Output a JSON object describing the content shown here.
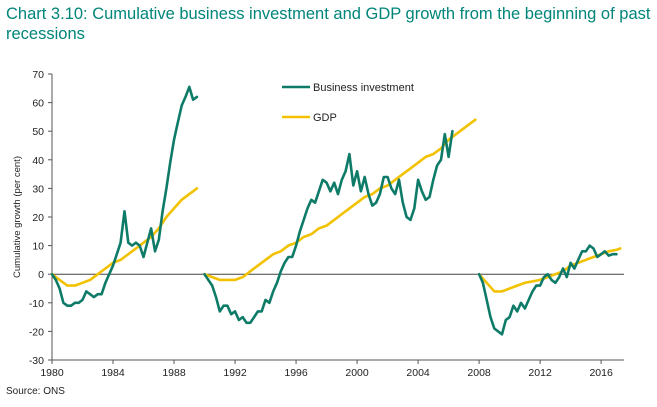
{
  "title": "Chart 3.10: Cumulative business investment and GDP growth from the beginning of past recessions",
  "source": "Source: ONS",
  "chart_data": {
    "type": "line",
    "ylabel": "Cumulative growth (per cent)",
    "xlim": [
      1980,
      2017.5
    ],
    "ylim": [
      -30,
      70
    ],
    "x_ticks": [
      "1980",
      "1984",
      "1988",
      "1992",
      "1996",
      "2000",
      "2004",
      "2008",
      "2012",
      "2016"
    ],
    "y_ticks": [
      "70",
      "60",
      "50",
      "40",
      "30",
      "20",
      "10",
      "0",
      "-10",
      "-20",
      "-30"
    ],
    "legend_position": "upper-center",
    "series": [
      {
        "name": "Business investment",
        "color": "#0e7b68",
        "segments": [
          [
            [
              1980.0,
              0
            ],
            [
              1980.25,
              -2
            ],
            [
              1980.5,
              -5
            ],
            [
              1980.75,
              -10
            ],
            [
              1981.0,
              -11
            ],
            [
              1981.25,
              -11
            ],
            [
              1981.5,
              -10
            ],
            [
              1981.75,
              -10
            ],
            [
              1982.0,
              -9
            ],
            [
              1982.25,
              -6
            ],
            [
              1982.5,
              -7
            ],
            [
              1982.75,
              -8
            ],
            [
              1983.0,
              -7
            ],
            [
              1983.25,
              -7
            ],
            [
              1983.5,
              -3
            ],
            [
              1983.75,
              0
            ],
            [
              1984.0,
              3
            ],
            [
              1984.25,
              7
            ],
            [
              1984.5,
              11
            ],
            [
              1984.75,
              22
            ],
            [
              1985.0,
              11
            ],
            [
              1985.25,
              10
            ],
            [
              1985.5,
              11
            ],
            [
              1985.75,
              10
            ],
            [
              1986.0,
              6
            ],
            [
              1986.25,
              11
            ],
            [
              1986.5,
              16
            ],
            [
              1986.75,
              8
            ],
            [
              1987.0,
              12
            ],
            [
              1987.25,
              22
            ],
            [
              1987.5,
              30
            ],
            [
              1987.75,
              39
            ],
            [
              1988.0,
              47
            ],
            [
              1988.25,
              53
            ],
            [
              1988.5,
              59
            ],
            [
              1988.75,
              62
            ],
            [
              1989.0,
              65.5
            ],
            [
              1989.25,
              61
            ],
            [
              1989.5,
              62
            ]
          ],
          [
            [
              1990.0,
              0
            ],
            [
              1990.25,
              -2
            ],
            [
              1990.5,
              -4
            ],
            [
              1990.75,
              -8
            ],
            [
              1991.0,
              -13
            ],
            [
              1991.25,
              -11
            ],
            [
              1991.5,
              -11
            ],
            [
              1991.75,
              -14
            ],
            [
              1992.0,
              -13
            ],
            [
              1992.25,
              -16
            ],
            [
              1992.5,
              -15
            ],
            [
              1992.75,
              -17
            ],
            [
              1993.0,
              -17
            ],
            [
              1993.25,
              -15
            ],
            [
              1993.5,
              -13
            ],
            [
              1993.75,
              -13
            ],
            [
              1994.0,
              -9
            ],
            [
              1994.25,
              -10
            ],
            [
              1994.5,
              -6
            ],
            [
              1994.75,
              -3
            ],
            [
              1995.0,
              1
            ],
            [
              1995.25,
              4
            ],
            [
              1995.5,
              6
            ],
            [
              1995.75,
              6
            ],
            [
              1996.0,
              10
            ],
            [
              1996.25,
              15
            ],
            [
              1996.5,
              19
            ],
            [
              1996.75,
              23
            ],
            [
              1997.0,
              26
            ],
            [
              1997.25,
              25
            ],
            [
              1997.5,
              29
            ],
            [
              1997.75,
              33
            ],
            [
              1998.0,
              32
            ],
            [
              1998.25,
              29
            ],
            [
              1998.5,
              32
            ],
            [
              1998.75,
              28
            ],
            [
              1999.0,
              33
            ],
            [
              1999.25,
              36
            ],
            [
              1999.5,
              42
            ],
            [
              1999.75,
              31
            ],
            [
              2000.0,
              36
            ],
            [
              2000.25,
              29
            ],
            [
              2000.5,
              34
            ],
            [
              2000.75,
              28
            ],
            [
              2001.0,
              24
            ],
            [
              2001.25,
              25
            ],
            [
              2001.5,
              28
            ],
            [
              2001.75,
              34
            ],
            [
              2002.0,
              34
            ],
            [
              2002.25,
              30
            ],
            [
              2002.5,
              28
            ],
            [
              2002.75,
              33
            ],
            [
              2003.0,
              25
            ],
            [
              2003.25,
              20
            ],
            [
              2003.5,
              19
            ],
            [
              2003.75,
              23
            ],
            [
              2004.0,
              33
            ],
            [
              2004.25,
              29
            ],
            [
              2004.5,
              26
            ],
            [
              2004.75,
              27
            ],
            [
              2005.0,
              33
            ],
            [
              2005.25,
              38
            ],
            [
              2005.5,
              40
            ],
            [
              2005.75,
              49
            ],
            [
              2006.0,
              41
            ],
            [
              2006.25,
              50
            ]
          ],
          [
            [
              2008.0,
              0
            ],
            [
              2008.25,
              -3
            ],
            [
              2008.5,
              -9
            ],
            [
              2008.75,
              -15
            ],
            [
              2009.0,
              -19
            ],
            [
              2009.25,
              -20
            ],
            [
              2009.5,
              -21
            ],
            [
              2009.75,
              -16
            ],
            [
              2010.0,
              -15
            ],
            [
              2010.25,
              -11
            ],
            [
              2010.5,
              -13
            ],
            [
              2010.75,
              -10
            ],
            [
              2011.0,
              -12
            ],
            [
              2011.25,
              -9
            ],
            [
              2011.5,
              -6
            ],
            [
              2011.75,
              -4
            ],
            [
              2012.0,
              -4
            ],
            [
              2012.25,
              -1
            ],
            [
              2012.5,
              0
            ],
            [
              2012.75,
              -2
            ],
            [
              2013.0,
              -3
            ],
            [
              2013.25,
              -1
            ],
            [
              2013.5,
              2
            ],
            [
              2013.75,
              -1
            ],
            [
              2014.0,
              4
            ],
            [
              2014.25,
              2
            ],
            [
              2014.5,
              5
            ],
            [
              2014.75,
              8
            ],
            [
              2015.0,
              8
            ],
            [
              2015.25,
              10
            ],
            [
              2015.5,
              9
            ],
            [
              2015.75,
              6
            ],
            [
              2016.0,
              7
            ],
            [
              2016.25,
              8
            ],
            [
              2016.5,
              6.5
            ],
            [
              2016.75,
              7
            ],
            [
              2017.0,
              7
            ]
          ]
        ]
      },
      {
        "name": "GDP",
        "color": "#f2c200",
        "segments": [
          [
            [
              1980.0,
              0
            ],
            [
              1980.5,
              -2
            ],
            [
              1981.0,
              -4
            ],
            [
              1981.5,
              -4
            ],
            [
              1982.0,
              -3
            ],
            [
              1982.5,
              -2
            ],
            [
              1983.0,
              0
            ],
            [
              1983.5,
              2
            ],
            [
              1984.0,
              4
            ],
            [
              1984.5,
              5
            ],
            [
              1985.0,
              7
            ],
            [
              1985.5,
              9
            ],
            [
              1986.0,
              11
            ],
            [
              1986.5,
              13
            ],
            [
              1987.0,
              16
            ],
            [
              1987.5,
              20
            ],
            [
              1988.0,
              23
            ],
            [
              1988.5,
              26
            ],
            [
              1989.0,
              28
            ],
            [
              1989.25,
              29
            ],
            [
              1989.5,
              30
            ]
          ],
          [
            [
              1990.0,
              0
            ],
            [
              1990.5,
              -1
            ],
            [
              1991.0,
              -2
            ],
            [
              1991.5,
              -2
            ],
            [
              1992.0,
              -2
            ],
            [
              1992.5,
              -1
            ],
            [
              1993.0,
              1
            ],
            [
              1993.5,
              3
            ],
            [
              1994.0,
              5
            ],
            [
              1994.5,
              7
            ],
            [
              1995.0,
              8
            ],
            [
              1995.5,
              10
            ],
            [
              1996.0,
              11
            ],
            [
              1996.5,
              13
            ],
            [
              1997.0,
              14
            ],
            [
              1997.5,
              16
            ],
            [
              1998.0,
              17
            ],
            [
              1998.5,
              19
            ],
            [
              1999.0,
              21
            ],
            [
              1999.5,
              23
            ],
            [
              2000.0,
              25
            ],
            [
              2000.5,
              27
            ],
            [
              2001.0,
              28
            ],
            [
              2001.5,
              30
            ],
            [
              2002.0,
              31
            ],
            [
              2002.5,
              33
            ],
            [
              2003.0,
              35
            ],
            [
              2003.5,
              37
            ],
            [
              2004.0,
              39
            ],
            [
              2004.5,
              41
            ],
            [
              2005.0,
              42
            ],
            [
              2005.5,
              44
            ],
            [
              2006.0,
              47
            ],
            [
              2006.5,
              49
            ],
            [
              2007.0,
              51
            ],
            [
              2007.5,
              53
            ],
            [
              2007.75,
              54
            ]
          ],
          [
            [
              2008.0,
              0
            ],
            [
              2008.5,
              -3
            ],
            [
              2009.0,
              -6
            ],
            [
              2009.5,
              -6
            ],
            [
              2010.0,
              -5
            ],
            [
              2010.5,
              -4
            ],
            [
              2011.0,
              -3
            ],
            [
              2011.5,
              -2.5
            ],
            [
              2012.0,
              -2
            ],
            [
              2012.5,
              -1
            ],
            [
              2013.0,
              0
            ],
            [
              2013.5,
              1
            ],
            [
              2014.0,
              3
            ],
            [
              2014.5,
              4
            ],
            [
              2015.0,
              5
            ],
            [
              2015.5,
              6
            ],
            [
              2016.0,
              7
            ],
            [
              2016.5,
              8
            ],
            [
              2017.0,
              8.5
            ],
            [
              2017.25,
              9
            ]
          ]
        ]
      }
    ]
  }
}
